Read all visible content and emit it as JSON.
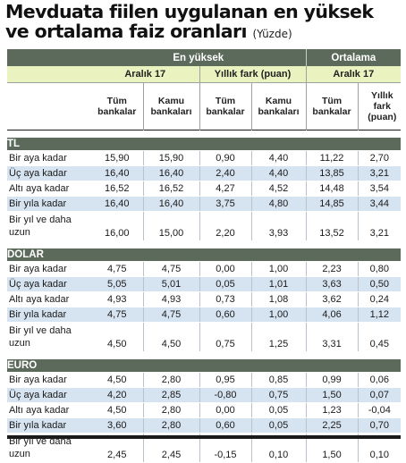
{
  "title": {
    "line1": "Mevduata fiilen uygulanan en yüksek",
    "line2": "ve ortalama faiz oranları",
    "unit": "(Yüzde)"
  },
  "header": {
    "group_max": "En yüksek",
    "group_avg": "Ortalama",
    "period_max": "Aralık 17",
    "change_max": "Yıllık fark (puan)",
    "period_avg": "Aralık 17",
    "col_all_banks": "Tüm bankalar",
    "col_public_banks": "Kamu bankaları",
    "col_all_banks_2": "Tüm bankalar",
    "col_public_banks_2": "Kamu bankaları",
    "col_all_banks_3": "Tüm bankalar",
    "col_annual_diff": "Yıllık fark (puan)"
  },
  "sections": [
    {
      "name": "TL",
      "rows": [
        {
          "label": "Bir aya kadar",
          "v": [
            "15,90",
            "15,90",
            "0,90",
            "4,40",
            "11,22",
            "2,70"
          ]
        },
        {
          "label": "Üç aya kadar",
          "v": [
            "16,40",
            "16,40",
            "2,40",
            "4,40",
            "13,85",
            "3,21"
          ]
        },
        {
          "label": "Altı aya kadar",
          "v": [
            "16,52",
            "16,52",
            "4,27",
            "4,52",
            "14,48",
            "3,54"
          ]
        },
        {
          "label": "Bir yıla kadar",
          "v": [
            "16,40",
            "16,40",
            "3,75",
            "4,80",
            "14,85",
            "3,44"
          ]
        },
        {
          "label": "Bir yıl ve daha uzun",
          "v": [
            "16,00",
            "15,00",
            "2,20",
            "3,93",
            "13,52",
            "3,21"
          ]
        }
      ]
    },
    {
      "name": "DOLAR",
      "rows": [
        {
          "label": "Bir aya kadar",
          "v": [
            "4,75",
            "4,75",
            "0,00",
            "1,00",
            "2,23",
            "0,80"
          ]
        },
        {
          "label": "Üç aya kadar",
          "v": [
            "5,05",
            "5,01",
            "0,05",
            "1,01",
            "3,63",
            "0,50"
          ]
        },
        {
          "label": "Altı aya kadar",
          "v": [
            "4,93",
            "4,93",
            "0,73",
            "1,08",
            "3,62",
            "0,24"
          ]
        },
        {
          "label": "Bir yıla kadar",
          "v": [
            "4,75",
            "4,75",
            "0,60",
            "1,00",
            "4,06",
            "1,12"
          ]
        },
        {
          "label": "Bir yıl ve daha uzun",
          "v": [
            "4,50",
            "4,50",
            "0,75",
            "1,25",
            "3,31",
            "0,45"
          ]
        }
      ]
    },
    {
      "name": "EURO",
      "rows": [
        {
          "label": "Bir aya kadar",
          "v": [
            "4,50",
            "2,80",
            "0,95",
            "0,85",
            "0,99",
            "0,06"
          ]
        },
        {
          "label": "Üç aya kadar",
          "v": [
            "4,20",
            "2,85",
            "-0,80",
            "0,75",
            "1,50",
            "0,07"
          ]
        },
        {
          "label": "Altı aya kadar",
          "v": [
            "4,50",
            "2,80",
            "0,00",
            "0,05",
            "1,23",
            "-0,04"
          ]
        },
        {
          "label": "Bir yıla kadar",
          "v": [
            "3,60",
            "2,80",
            "0,60",
            "0,05",
            "2,25",
            "0,70"
          ]
        },
        {
          "label": "Bir yıl ve daha uzun",
          "v": [
            "2,45",
            "2,45",
            "-0,15",
            "0,10",
            "1,50",
            "0,10"
          ]
        }
      ]
    }
  ]
}
